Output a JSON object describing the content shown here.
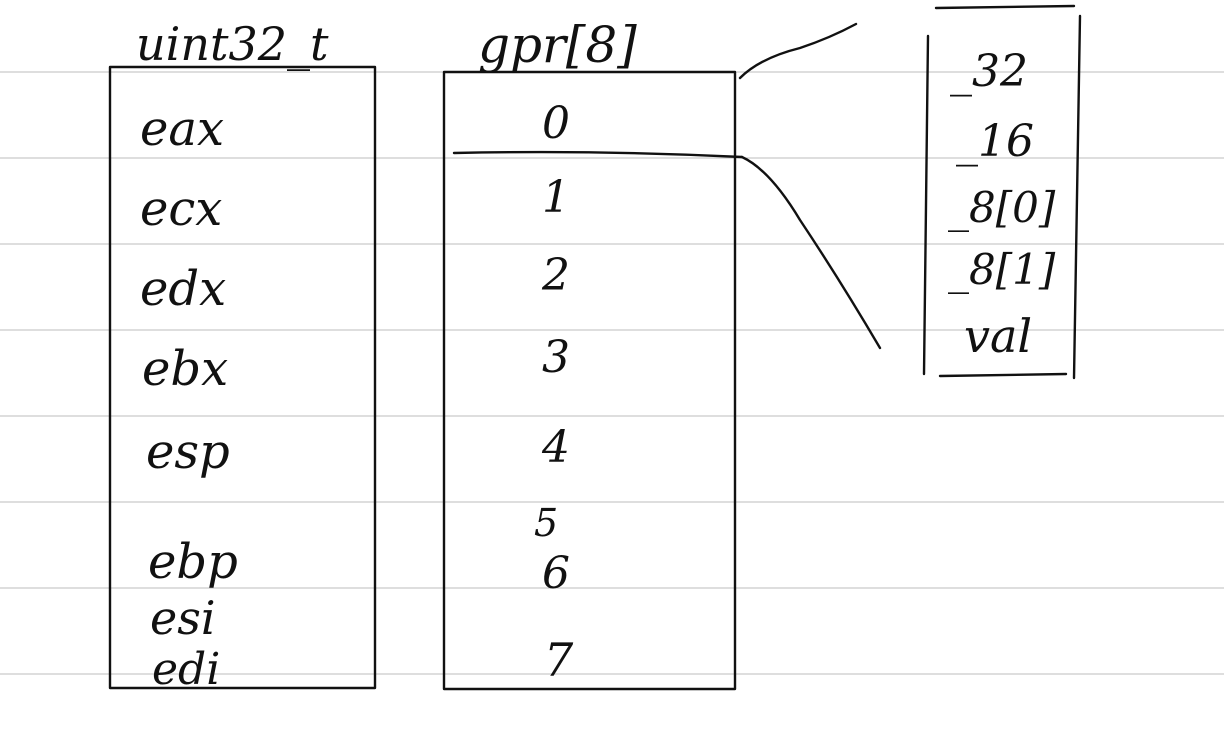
{
  "left_box": {
    "title": "uint32_t",
    "registers": [
      "eax",
      "ecx",
      "edx",
      "ebx",
      "esp",
      "ebp",
      "esi",
      "edi"
    ]
  },
  "middle_box": {
    "title": "gpr[8]",
    "indices": [
      "0",
      "1",
      "2",
      "3",
      "4",
      "5",
      "6",
      "7"
    ]
  },
  "right_box": {
    "fields": [
      "_32",
      "_16",
      "_8[0]",
      "_8[1]",
      "val"
    ]
  }
}
